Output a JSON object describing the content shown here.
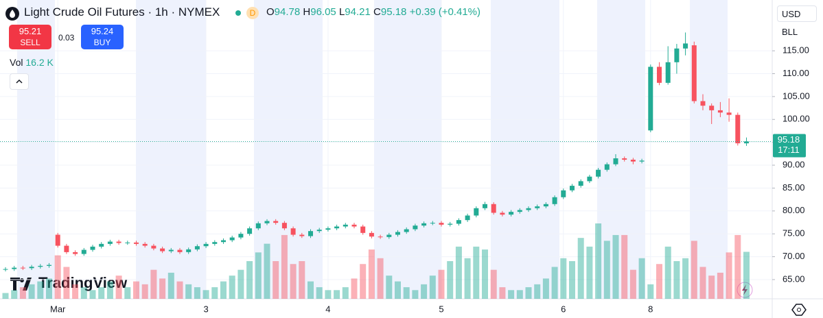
{
  "header": {
    "title": "Light Crude Oil Futures · 1h · NYMEX",
    "badge": "D",
    "ohlc_labels": [
      "O",
      "H",
      "L",
      "C"
    ],
    "change": "+0.39 (+0.41%)",
    "sell_price": "95.21",
    "sell": "SELL",
    "spread": "0.03",
    "buy_price": "95.24",
    "buy": "BUY",
    "vol_label": "Vol",
    "vol_value": "16.2 K",
    "currency": "USD",
    "unit": "BLL",
    "logo": "TradingView"
  },
  "chart_data": {
    "type": "candlestick",
    "categories": [
      null,
      null,
      null,
      null,
      null,
      null,
      "Mar",
      null,
      null,
      null,
      null,
      null,
      null,
      null,
      null,
      null,
      null,
      null,
      null,
      null,
      null,
      null,
      null,
      "3",
      null,
      null,
      null,
      null,
      null,
      null,
      null,
      null,
      null,
      null,
      null,
      null,
      null,
      "4",
      null,
      null,
      null,
      null,
      null,
      null,
      null,
      null,
      null,
      null,
      null,
      null,
      "5",
      null,
      null,
      null,
      null,
      null,
      null,
      null,
      null,
      null,
      null,
      null,
      null,
      null,
      "6",
      null,
      null,
      null,
      null,
      null,
      null,
      null,
      null,
      null,
      "8",
      null,
      null,
      null,
      null,
      null,
      null,
      null,
      null,
      null,
      null,
      null
    ],
    "open": [
      67.2,
      67.3,
      67.6,
      67.5,
      67.8,
      68.0,
      74.8,
      72.4,
      71.0,
      70.6,
      71.5,
      72.2,
      72.8,
      73.3,
      73.0,
      73.1,
      72.8,
      72.4,
      71.8,
      71.2,
      71.5,
      71.0,
      71.6,
      72.3,
      72.8,
      73.2,
      73.6,
      74.2,
      75.0,
      76.2,
      77.3,
      77.8,
      77.4,
      76.2,
      74.8,
      74.5,
      75.6,
      75.9,
      76.2,
      76.6,
      77.0,
      76.6,
      75.2,
      74.4,
      74.3,
      74.8,
      75.4,
      76.0,
      76.8,
      77.3,
      77.4,
      77.0,
      77.2,
      78.0,
      79.0,
      80.6,
      81.5,
      79.6,
      79.2,
      79.8,
      80.2,
      80.6,
      81.0,
      81.5,
      83.0,
      84.5,
      85.5,
      86.5,
      87.5,
      89.0,
      90.2,
      91.5,
      91.2,
      90.8,
      97.6,
      111.5,
      108.0,
      112.5,
      115.5,
      116.2,
      104.0,
      103.0,
      102.0,
      101.5,
      101.0,
      94.78
    ],
    "high": [
      67.7,
      68.0,
      68.0,
      68.2,
      68.4,
      68.6,
      75.2,
      72.8,
      71.4,
      71.9,
      72.6,
      73.2,
      73.7,
      73.7,
      73.5,
      73.5,
      73.2,
      72.8,
      72.2,
      71.9,
      71.9,
      72.0,
      72.7,
      73.2,
      73.6,
      74.0,
      74.6,
      75.4,
      76.6,
      77.7,
      78.2,
      78.2,
      77.8,
      76.6,
      75.2,
      76.0,
      76.3,
      76.6,
      77.0,
      77.4,
      77.4,
      77.0,
      75.6,
      74.8,
      75.2,
      75.8,
      76.4,
      77.2,
      77.7,
      77.8,
      77.8,
      77.6,
      78.4,
      79.4,
      81.0,
      82.0,
      81.9,
      80.0,
      80.2,
      80.6,
      81.0,
      81.4,
      81.9,
      83.4,
      84.9,
      85.9,
      86.9,
      87.9,
      89.4,
      90.6,
      92.4,
      91.9,
      91.6,
      91.4,
      112.0,
      112.5,
      116.0,
      116.5,
      119.0,
      117.0,
      105.5,
      103.5,
      103.8,
      104.6,
      101.5,
      96.05
    ],
    "low": [
      66.8,
      66.9,
      67.1,
      67.1,
      67.4,
      67.6,
      72.0,
      70.6,
      70.2,
      70.2,
      71.1,
      71.8,
      72.4,
      72.6,
      72.6,
      72.4,
      72.0,
      71.4,
      70.8,
      70.8,
      70.6,
      70.6,
      71.2,
      71.9,
      72.4,
      72.8,
      73.2,
      73.8,
      74.6,
      75.8,
      76.9,
      77.0,
      75.8,
      74.4,
      74.1,
      74.1,
      75.2,
      75.5,
      75.8,
      76.2,
      76.2,
      74.8,
      74.0,
      73.9,
      73.9,
      74.4,
      75.0,
      75.6,
      76.4,
      76.9,
      76.6,
      76.6,
      76.8,
      77.6,
      78.6,
      80.2,
      79.2,
      78.8,
      78.8,
      79.4,
      79.8,
      80.2,
      80.6,
      81.1,
      82.6,
      84.1,
      85.1,
      86.1,
      87.1,
      88.6,
      89.8,
      90.8,
      90.2,
      90.4,
      97.2,
      107.5,
      107.6,
      110.0,
      114.0,
      103.5,
      102.0,
      99.0,
      100.5,
      99.5,
      94.3,
      94.21
    ],
    "close": [
      67.3,
      67.6,
      67.5,
      67.8,
      68.0,
      68.2,
      72.4,
      71.0,
      70.6,
      71.5,
      72.2,
      72.8,
      73.3,
      73.0,
      73.1,
      72.8,
      72.4,
      71.8,
      71.2,
      71.5,
      71.0,
      71.6,
      72.3,
      72.8,
      73.2,
      73.6,
      74.2,
      75.0,
      76.2,
      77.3,
      77.8,
      77.4,
      76.2,
      74.8,
      74.5,
      75.6,
      75.9,
      76.2,
      76.6,
      77.0,
      76.6,
      75.2,
      74.4,
      74.3,
      74.8,
      75.4,
      76.0,
      76.8,
      77.3,
      77.4,
      77.0,
      77.2,
      78.0,
      79.0,
      80.6,
      81.5,
      79.6,
      79.2,
      79.8,
      80.2,
      80.6,
      81.0,
      81.5,
      83.0,
      84.5,
      85.5,
      86.5,
      87.5,
      89.0,
      90.2,
      91.5,
      91.2,
      90.8,
      91.0,
      111.5,
      108.0,
      112.5,
      115.5,
      116.6,
      104.0,
      103.0,
      102.0,
      101.5,
      101.0,
      94.78,
      95.18
    ],
    "volume": [
      2,
      3,
      4,
      5,
      6,
      7,
      15,
      11,
      5,
      4,
      3,
      4,
      6,
      8,
      4,
      6,
      5,
      10,
      7,
      9,
      6,
      5,
      4,
      3,
      4,
      6,
      8,
      10,
      13,
      16,
      19,
      13,
      22,
      12,
      13,
      6,
      4,
      3,
      3,
      4,
      7,
      12,
      17,
      14,
      8,
      6,
      4,
      3,
      5,
      8,
      10,
      13,
      18,
      14,
      18,
      17,
      10,
      4,
      3,
      3,
      4,
      5,
      7,
      11,
      14,
      13,
      21,
      18,
      26,
      20,
      22,
      22,
      10,
      14,
      5,
      12,
      18,
      13,
      14,
      20,
      11,
      8,
      9,
      16,
      22,
      16.2
    ],
    "up_color": "#22ab94",
    "down_color": "#f7525f",
    "ylim": [
      60.8,
      126.1
    ],
    "yticks": [
      {
        "value": 65,
        "label": "65.00"
      },
      {
        "value": 70,
        "label": "70.00"
      },
      {
        "value": 75,
        "label": "75.00"
      },
      {
        "value": 80,
        "label": "80.00"
      },
      {
        "value": 85,
        "label": "85.00"
      },
      {
        "value": 90,
        "label": "90.00"
      },
      {
        "value": 95,
        "label": "95.00"
      },
      {
        "value": 100,
        "label": "100.00"
      },
      {
        "value": 105,
        "label": "105.00"
      },
      {
        "value": 110,
        "label": "110.00"
      },
      {
        "value": 115,
        "label": "115.00"
      }
    ],
    "countdown": "17:11",
    "grid": true
  }
}
